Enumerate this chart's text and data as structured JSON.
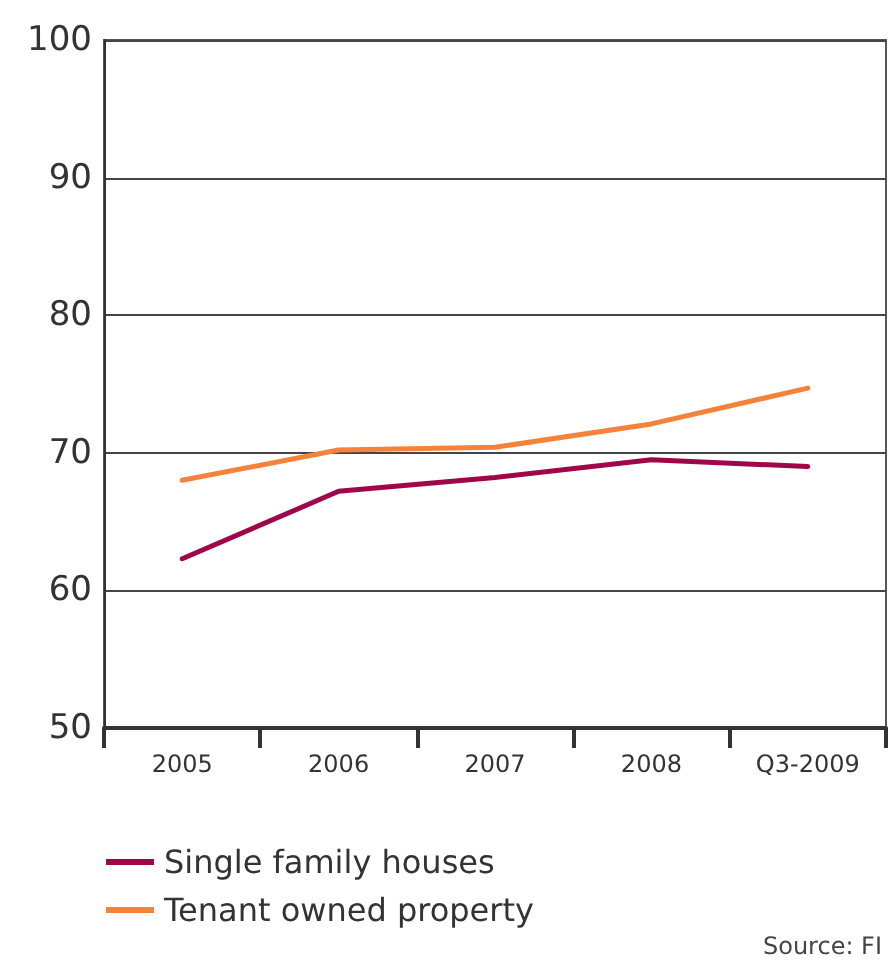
{
  "chart_data": {
    "type": "line",
    "categories": [
      "2005",
      "2006",
      "2007",
      "2008",
      "Q3-2009"
    ],
    "series": [
      {
        "name": "Single family houses",
        "color": "#a0064a",
        "values": [
          62.3,
          67.2,
          68.2,
          69.5,
          69.0
        ]
      },
      {
        "name": "Tenant owned property",
        "color": "#f5823a",
        "values": [
          68.0,
          70.2,
          70.4,
          72.1,
          74.7
        ]
      }
    ],
    "ylim": [
      50,
      100
    ],
    "yticks": [
      50,
      60,
      70,
      80,
      90,
      100
    ],
    "grid": "y",
    "legend": "bottom left",
    "marker": "none",
    "line_style": "solid",
    "annotations": [
      "Source: FI"
    ]
  }
}
